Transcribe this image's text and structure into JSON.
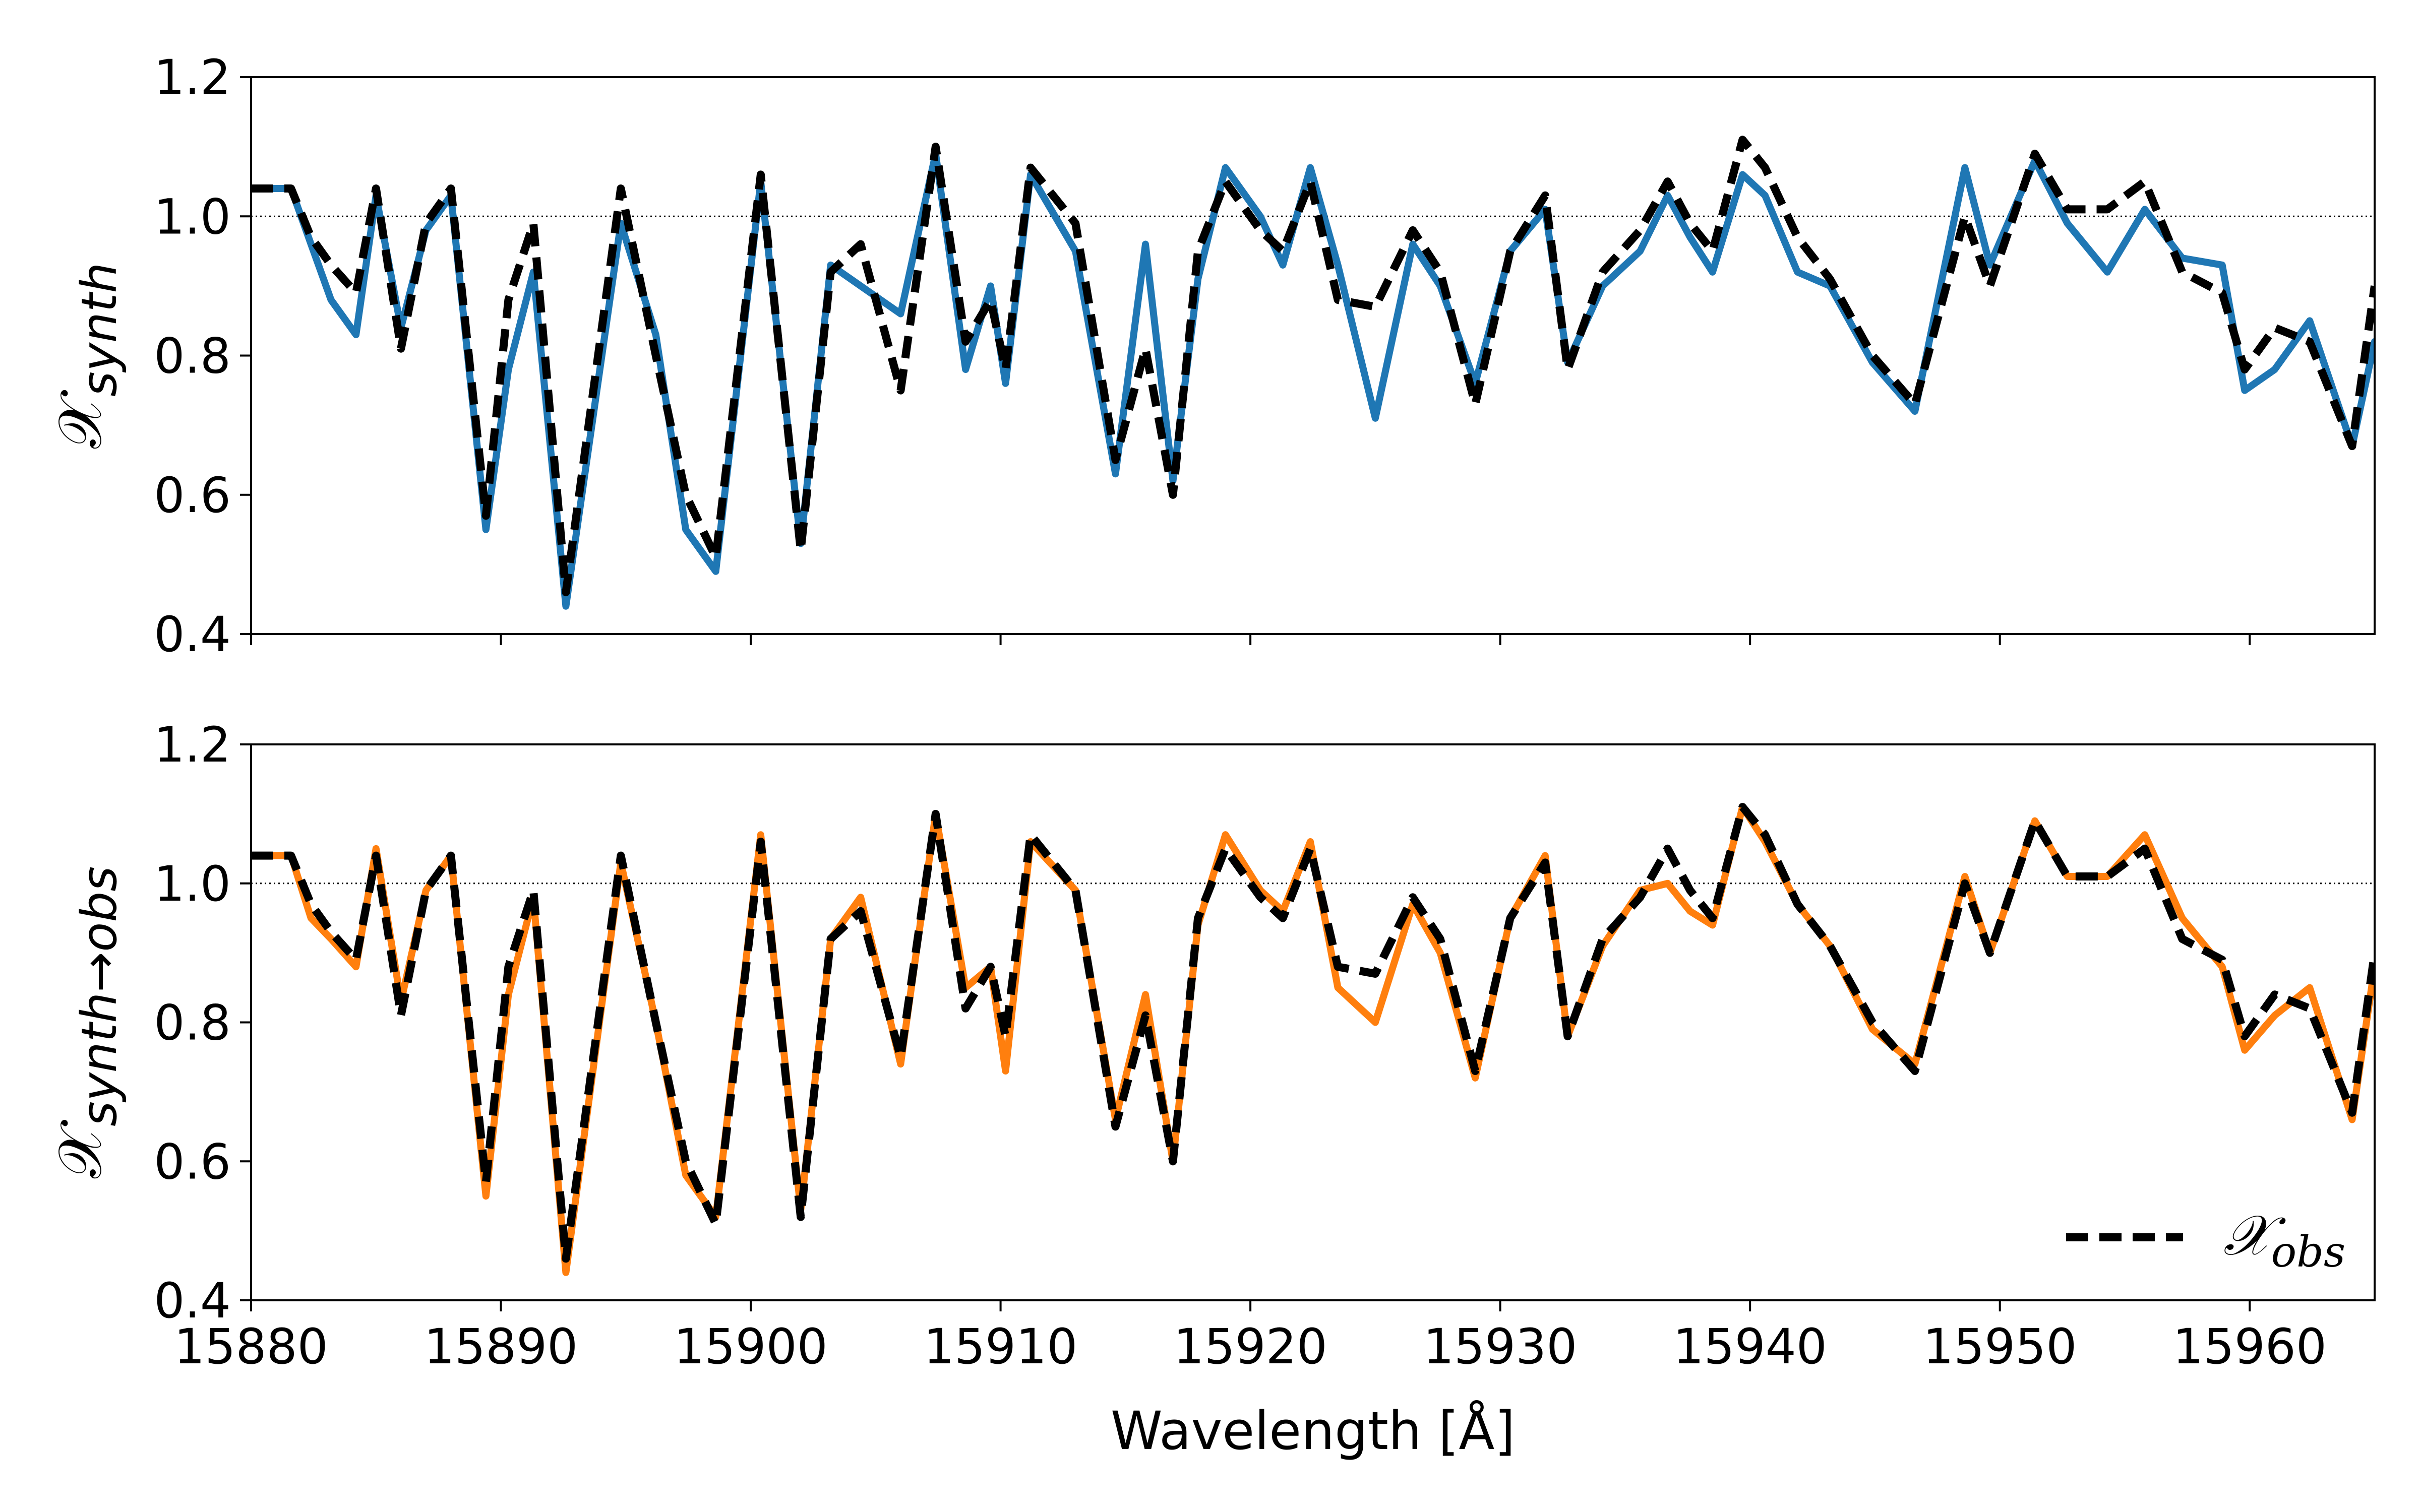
{
  "chart_data": [
    {
      "type": "line",
      "ylabel": "𝒳",
      "ylabel_sub": "synth",
      "xlim": [
        15880,
        15965
      ],
      "ylim": [
        0.4,
        1.2
      ],
      "xticks": [
        15880,
        15890,
        15900,
        15910,
        15920,
        15930,
        15940,
        15950,
        15960
      ],
      "yticks": [
        "0.4",
        "0.6",
        "0.8",
        "1.0",
        "1.2"
      ],
      "reference_line": 1.0,
      "grid": false,
      "series": [
        {
          "color": "#1f77b4",
          "style": "solid",
          "x": [
            15880,
            15881.6,
            15882.4,
            15883.2,
            15884.2,
            15885.0,
            15886.0,
            15887.0,
            15888.0,
            15889.4,
            15890.3,
            15891.3,
            15892.6,
            15894.8,
            15896.2,
            15897.4,
            15898.6,
            15900.4,
            15902.0,
            15903.2,
            15904.4,
            15906.0,
            15907.4,
            15908.6,
            15909.6,
            15910.2,
            15911.2,
            15913.0,
            15914.6,
            15915.8,
            15916.9,
            15917.9,
            15919.0,
            15920.4,
            15921.3,
            15922.4,
            15923.5,
            15925.0,
            15926.5,
            15927.6,
            15929.0,
            15930.4,
            15931.8,
            15932.7,
            15934.1,
            15935.6,
            15936.7,
            15937.6,
            15938.5,
            15939.7,
            15940.6,
            15941.9,
            15943.2,
            15944.9,
            15946.6,
            15948.6,
            15949.6,
            15951.4,
            15952.7,
            15954.3,
            15955.8,
            15957.3,
            15958.9,
            15959.8,
            15961.0,
            15962.4,
            15964.1,
            15965.0
          ],
          "values": [
            1.04,
            1.04,
            0.96,
            0.88,
            0.83,
            1.03,
            0.84,
            0.98,
            1.03,
            0.55,
            0.78,
            0.92,
            0.44,
            0.99,
            0.83,
            0.55,
            0.49,
            1.05,
            0.53,
            0.93,
            0.9,
            0.86,
            1.09,
            0.78,
            0.9,
            0.76,
            1.06,
            0.95,
            0.63,
            0.96,
            0.62,
            0.91,
            1.07,
            1.0,
            0.93,
            1.07,
            0.93,
            0.71,
            0.96,
            0.9,
            0.76,
            0.95,
            1.01,
            0.79,
            0.9,
            0.95,
            1.03,
            0.97,
            0.92,
            1.06,
            1.03,
            0.92,
            0.9,
            0.79,
            0.72,
            1.07,
            0.93,
            1.08,
            0.99,
            0.92,
            1.01,
            0.94,
            0.93,
            0.75,
            0.78,
            0.85,
            0.67,
            0.82
          ]
        },
        {
          "color": "#000000",
          "style": "dashed",
          "x": [
            15880,
            15881.6,
            15882.4,
            15883.2,
            15884.2,
            15885.0,
            15886.0,
            15887.0,
            15888.0,
            15889.4,
            15890.3,
            15891.3,
            15892.6,
            15894.8,
            15896.2,
            15897.4,
            15898.6,
            15900.4,
            15902.0,
            15903.2,
            15904.4,
            15906.0,
            15907.4,
            15908.6,
            15909.6,
            15910.2,
            15911.2,
            15913.0,
            15914.6,
            15915.8,
            15916.9,
            15917.9,
            15919.0,
            15920.4,
            15921.3,
            15922.4,
            15923.5,
            15925.0,
            15926.5,
            15927.6,
            15929.0,
            15930.4,
            15931.8,
            15932.7,
            15934.1,
            15935.6,
            15936.7,
            15937.6,
            15938.5,
            15939.7,
            15940.6,
            15941.9,
            15943.2,
            15944.9,
            15946.6,
            15948.6,
            15949.6,
            15951.4,
            15952.7,
            15954.3,
            15955.8,
            15957.3,
            15958.9,
            15959.8,
            15961.0,
            15962.4,
            15964.1,
            15965.0
          ],
          "values": [
            1.04,
            1.04,
            0.97,
            0.93,
            0.89,
            1.04,
            0.81,
            0.99,
            1.04,
            0.57,
            0.88,
            0.99,
            0.46,
            1.04,
            0.8,
            0.6,
            0.51,
            1.06,
            0.52,
            0.92,
            0.96,
            0.75,
            1.1,
            0.82,
            0.88,
            0.78,
            1.07,
            0.99,
            0.65,
            0.81,
            0.6,
            0.95,
            1.05,
            0.98,
            0.95,
            1.05,
            0.88,
            0.87,
            0.98,
            0.92,
            0.73,
            0.95,
            1.03,
            0.78,
            0.92,
            0.98,
            1.05,
            0.99,
            0.95,
            1.11,
            1.07,
            0.97,
            0.91,
            0.8,
            0.73,
            1.0,
            0.9,
            1.09,
            1.01,
            1.01,
            1.05,
            0.92,
            0.89,
            0.78,
            0.84,
            0.82,
            0.67,
            0.9
          ]
        }
      ]
    },
    {
      "type": "line",
      "ylabel": "𝒳",
      "ylabel_sub": "synth→obs",
      "xlabel": "Wavelength [Å]",
      "xlim": [
        15880,
        15965
      ],
      "ylim": [
        0.4,
        1.2
      ],
      "xticks": [
        15880,
        15890,
        15900,
        15910,
        15920,
        15930,
        15940,
        15950,
        15960
      ],
      "yticks": [
        "0.4",
        "0.6",
        "0.8",
        "1.0",
        "1.2"
      ],
      "reference_line": 1.0,
      "grid": false,
      "legend": {
        "position": "lower-right",
        "label_main": "𝒳",
        "label_sub": "obs"
      },
      "series": [
        {
          "color": "#ff7f0e",
          "style": "solid",
          "x": [
            15880,
            15881.6,
            15882.4,
            15883.2,
            15884.2,
            15885.0,
            15886.0,
            15887.0,
            15888.0,
            15889.4,
            15890.3,
            15891.3,
            15892.6,
            15894.8,
            15896.2,
            15897.4,
            15898.6,
            15900.4,
            15902.0,
            15903.2,
            15904.4,
            15906.0,
            15907.4,
            15908.6,
            15909.6,
            15910.2,
            15911.2,
            15913.0,
            15914.6,
            15915.8,
            15916.9,
            15917.9,
            15919.0,
            15920.4,
            15921.3,
            15922.4,
            15923.5,
            15925.0,
            15926.5,
            15927.6,
            15929.0,
            15930.4,
            15931.8,
            15932.7,
            15934.1,
            15935.6,
            15936.7,
            15937.6,
            15938.5,
            15939.7,
            15940.6,
            15941.9,
            15943.2,
            15944.9,
            15946.6,
            15948.6,
            15949.6,
            15951.4,
            15952.7,
            15954.3,
            15955.8,
            15957.3,
            15958.9,
            15959.8,
            15961.0,
            15962.4,
            15964.1,
            15965.0
          ],
          "values": [
            1.04,
            1.04,
            0.95,
            0.92,
            0.88,
            1.05,
            0.83,
            0.99,
            1.04,
            0.55,
            0.84,
            0.98,
            0.44,
            1.03,
            0.8,
            0.58,
            0.52,
            1.07,
            0.53,
            0.92,
            0.98,
            0.74,
            1.1,
            0.85,
            0.88,
            0.73,
            1.06,
            0.99,
            0.66,
            0.84,
            0.6,
            0.94,
            1.07,
            0.99,
            0.96,
            1.06,
            0.85,
            0.8,
            0.97,
            0.9,
            0.72,
            0.95,
            1.04,
            0.78,
            0.91,
            0.99,
            1.0,
            0.96,
            0.94,
            1.11,
            1.06,
            0.97,
            0.91,
            0.79,
            0.74,
            1.01,
            0.9,
            1.09,
            1.01,
            1.01,
            1.07,
            0.95,
            0.88,
            0.76,
            0.81,
            0.85,
            0.66,
            0.88
          ]
        },
        {
          "color": "#000000",
          "style": "dashed",
          "x": [
            15880,
            15881.6,
            15882.4,
            15883.2,
            15884.2,
            15885.0,
            15886.0,
            15887.0,
            15888.0,
            15889.4,
            15890.3,
            15891.3,
            15892.6,
            15894.8,
            15896.2,
            15897.4,
            15898.6,
            15900.4,
            15902.0,
            15903.2,
            15904.4,
            15906.0,
            15907.4,
            15908.6,
            15909.6,
            15910.2,
            15911.2,
            15913.0,
            15914.6,
            15915.8,
            15916.9,
            15917.9,
            15919.0,
            15920.4,
            15921.3,
            15922.4,
            15923.5,
            15925.0,
            15926.5,
            15927.6,
            15929.0,
            15930.4,
            15931.8,
            15932.7,
            15934.1,
            15935.6,
            15936.7,
            15937.6,
            15938.5,
            15939.7,
            15940.6,
            15941.9,
            15943.2,
            15944.9,
            15946.6,
            15948.6,
            15949.6,
            15951.4,
            15952.7,
            15954.3,
            15955.8,
            15957.3,
            15958.9,
            15959.8,
            15961.0,
            15962.4,
            15964.1,
            15965.0
          ],
          "values": [
            1.04,
            1.04,
            0.97,
            0.93,
            0.89,
            1.04,
            0.81,
            0.99,
            1.04,
            0.57,
            0.88,
            0.99,
            0.46,
            1.04,
            0.8,
            0.6,
            0.51,
            1.06,
            0.52,
            0.92,
            0.96,
            0.75,
            1.1,
            0.82,
            0.88,
            0.78,
            1.07,
            0.99,
            0.65,
            0.81,
            0.6,
            0.95,
            1.05,
            0.98,
            0.95,
            1.05,
            0.88,
            0.87,
            0.98,
            0.92,
            0.73,
            0.95,
            1.03,
            0.78,
            0.92,
            0.98,
            1.05,
            0.99,
            0.95,
            1.11,
            1.07,
            0.97,
            0.91,
            0.8,
            0.73,
            1.0,
            0.9,
            1.09,
            1.01,
            1.01,
            1.05,
            0.92,
            0.89,
            0.78,
            0.84,
            0.82,
            0.67,
            0.9
          ]
        }
      ]
    }
  ]
}
